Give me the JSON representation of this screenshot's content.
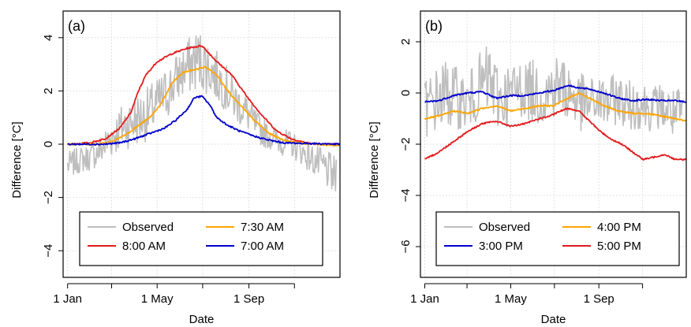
{
  "chart_data": [
    {
      "panel_label": "(a)",
      "type": "line",
      "xlabel": "Date",
      "ylabel": "Difference [°C]",
      "ylim": [
        -5,
        5
      ],
      "yticks": [
        -4,
        -2,
        0,
        2,
        4
      ],
      "xlim": [
        -6,
        365
      ],
      "xticks": [
        {
          "day": 0,
          "label": "1 Jan"
        },
        {
          "day": 59,
          "label": ""
        },
        {
          "day": 120,
          "label": "1 May"
        },
        {
          "day": 181,
          "label": ""
        },
        {
          "day": 243,
          "label": "1 Sep"
        },
        {
          "day": 304,
          "label": ""
        }
      ],
      "grid": true,
      "legend": {
        "position": "bottom",
        "columns": 2,
        "order": [
          "Observed",
          "7:30 AM",
          "8:00 AM",
          "7:00 AM"
        ]
      },
      "series": [
        {
          "name": "Observed",
          "color": "#BEBEBE",
          "style": "noisy",
          "x": [
            0,
            15,
            30,
            45,
            60,
            75,
            90,
            105,
            120,
            135,
            150,
            165,
            175,
            185,
            195,
            210,
            225,
            240,
            255,
            270,
            285,
            300,
            315,
            330,
            345,
            360
          ],
          "y": [
            -0.8,
            -0.6,
            -0.5,
            -0.2,
            0.3,
            0.7,
            0.9,
            1.1,
            1.5,
            2.0,
            2.6,
            3.0,
            3.2,
            3.0,
            2.7,
            2.2,
            1.6,
            1.2,
            0.6,
            0.3,
            0.1,
            0.0,
            -0.3,
            -0.6,
            -0.9,
            -1.3
          ],
          "noise": [
            0.5,
            0.5,
            0.5,
            0.6,
            0.8,
            0.9,
            1.0,
            1.0,
            1.0,
            1.0,
            1.0,
            1.1,
            1.2,
            1.1,
            1.0,
            0.9,
            0.8,
            0.7,
            0.6,
            0.5,
            0.5,
            0.5,
            0.5,
            0.6,
            0.7,
            0.8
          ]
        },
        {
          "name": "8:00 AM",
          "color": "#E41A1C",
          "style": "smooth",
          "x": [
            0,
            30,
            50,
            70,
            85,
            95,
            105,
            120,
            140,
            160,
            180,
            190,
            200,
            220,
            240,
            260,
            280,
            300,
            320,
            340,
            365
          ],
          "y": [
            0,
            0.05,
            0.2,
            0.6,
            1.2,
            2.0,
            2.6,
            3.1,
            3.4,
            3.6,
            3.7,
            3.4,
            3.1,
            2.6,
            1.8,
            1.1,
            0.5,
            0.2,
            0.05,
            0.0,
            0.0
          ]
        },
        {
          "name": "7:30 AM",
          "color": "#FFA500",
          "style": "smooth",
          "x": [
            0,
            40,
            60,
            80,
            95,
            110,
            125,
            140,
            155,
            170,
            185,
            200,
            215,
            230,
            250,
            270,
            290,
            310,
            330,
            365
          ],
          "y": [
            0,
            0,
            0.1,
            0.4,
            0.7,
            1.0,
            1.5,
            2.3,
            2.7,
            2.8,
            2.9,
            2.6,
            2.0,
            1.5,
            0.9,
            0.4,
            0.15,
            0.05,
            0.0,
            -0.05
          ]
        },
        {
          "name": "7:00 AM",
          "color": "#0000CD",
          "style": "smooth",
          "x": [
            0,
            50,
            70,
            90,
            110,
            130,
            145,
            160,
            170,
            180,
            190,
            200,
            215,
            230,
            250,
            270,
            290,
            365
          ],
          "y": [
            0,
            0,
            0.05,
            0.2,
            0.4,
            0.6,
            0.9,
            1.3,
            1.75,
            1.8,
            1.5,
            1.0,
            0.7,
            0.5,
            0.3,
            0.15,
            0.05,
            0.0
          ]
        }
      ]
    },
    {
      "panel_label": "(b)",
      "type": "line",
      "xlabel": "Date",
      "ylabel": "Difference [°C]",
      "ylim": [
        -7.2,
        3.2
      ],
      "yticks": [
        -6,
        -4,
        -2,
        0,
        2
      ],
      "xlim": [
        -6,
        365
      ],
      "xticks": [
        {
          "day": 0,
          "label": "1 Jan"
        },
        {
          "day": 59,
          "label": ""
        },
        {
          "day": 120,
          "label": "1 May"
        },
        {
          "day": 181,
          "label": ""
        },
        {
          "day": 243,
          "label": "1 Sep"
        },
        {
          "day": 304,
          "label": ""
        }
      ],
      "grid": true,
      "legend": {
        "position": "bottom",
        "columns": 2,
        "order": [
          "Observed",
          "4:00 PM",
          "3:00 PM",
          "5:00 PM"
        ]
      },
      "series": [
        {
          "name": "Observed",
          "color": "#BEBEBE",
          "style": "noisy",
          "x": [
            0,
            15,
            30,
            45,
            60,
            75,
            90,
            105,
            120,
            135,
            150,
            165,
            180,
            195,
            210,
            225,
            240,
            255,
            270,
            285,
            300,
            315,
            330,
            345,
            360
          ],
          "y": [
            -0.6,
            -0.3,
            0.0,
            -0.2,
            -0.4,
            0.2,
            0.5,
            -0.3,
            0.0,
            0.2,
            0.1,
            -0.2,
            0.3,
            0.2,
            -0.2,
            -0.5,
            -0.3,
            -0.4,
            -0.2,
            -0.5,
            -0.4,
            -0.6,
            -0.5,
            -0.8,
            -0.9
          ],
          "noise": [
            1.2,
            1.3,
            1.4,
            1.2,
            1.1,
            1.3,
            1.5,
            1.3,
            1.2,
            1.2,
            1.2,
            1.1,
            1.3,
            1.3,
            1.2,
            1.1,
            1.0,
            1.0,
            1.0,
            1.0,
            1.0,
            0.9,
            0.9,
            1.0,
            1.1
          ]
        },
        {
          "name": "3:00 PM",
          "color": "#0000CD",
          "style": "smooth",
          "x": [
            0,
            20,
            40,
            60,
            80,
            100,
            120,
            140,
            160,
            180,
            200,
            215,
            230,
            250,
            270,
            290,
            310,
            330,
            350,
            365
          ],
          "y": [
            -0.35,
            -0.3,
            -0.1,
            0.0,
            0.05,
            -0.2,
            -0.1,
            -0.1,
            0.0,
            0.1,
            0.3,
            0.2,
            0.15,
            0.0,
            -0.2,
            -0.3,
            -0.25,
            -0.3,
            -0.3,
            -0.35
          ]
        },
        {
          "name": "4:00 PM",
          "color": "#FFA500",
          "style": "smooth",
          "x": [
            0,
            20,
            40,
            60,
            80,
            100,
            120,
            140,
            160,
            180,
            200,
            215,
            230,
            250,
            270,
            290,
            310,
            330,
            350,
            365
          ],
          "y": [
            -1.0,
            -0.9,
            -0.7,
            -0.8,
            -0.6,
            -0.5,
            -0.7,
            -0.6,
            -0.5,
            -0.5,
            -0.2,
            0.0,
            -0.2,
            -0.5,
            -0.7,
            -0.8,
            -0.8,
            -0.9,
            -1.0,
            -1.1
          ]
        },
        {
          "name": "5:00 PM",
          "color": "#E41A1C",
          "style": "smooth",
          "x": [
            0,
            20,
            40,
            60,
            80,
            100,
            120,
            140,
            160,
            175,
            190,
            200,
            215,
            230,
            245,
            260,
            275,
            290,
            305,
            320,
            335,
            350,
            365
          ],
          "y": [
            -2.6,
            -2.3,
            -1.9,
            -1.5,
            -1.2,
            -1.1,
            -1.3,
            -1.2,
            -1.0,
            -0.9,
            -0.7,
            -0.6,
            -0.7,
            -1.1,
            -1.5,
            -1.8,
            -2.0,
            -2.3,
            -2.6,
            -2.5,
            -2.4,
            -2.6,
            -2.6
          ]
        }
      ]
    }
  ]
}
